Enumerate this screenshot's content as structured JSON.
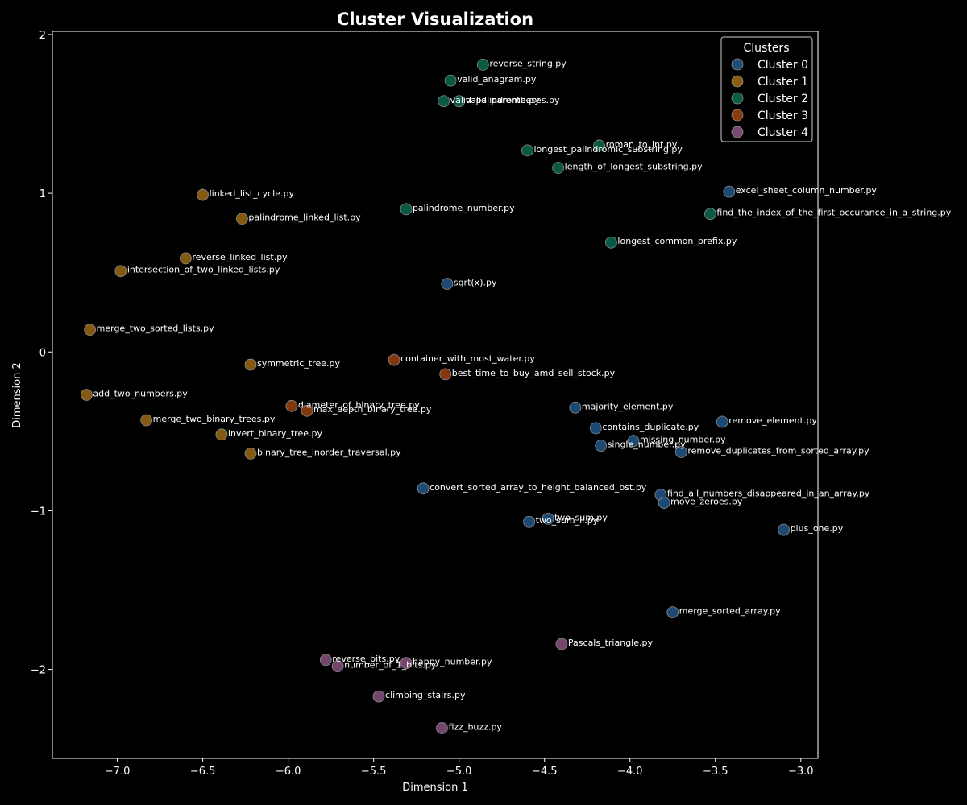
{
  "chart_data": {
    "type": "scatter",
    "title": "Cluster Visualization",
    "xlabel": "Dimension 1",
    "ylabel": "Dimension 2",
    "xlim": [
      -7.38,
      -2.9
    ],
    "ylim": [
      -2.56,
      2.02
    ],
    "x_ticks": [
      -7.0,
      -6.5,
      -6.0,
      -5.5,
      -5.0,
      -4.5,
      -4.0,
      -3.5,
      -3.0
    ],
    "y_ticks": [
      -2,
      -1,
      0,
      1,
      2
    ],
    "x_tick_labels": [
      "−7.0",
      "−6.5",
      "−6.0",
      "−5.5",
      "−5.0",
      "−4.5",
      "−4.0",
      "−3.5",
      "−3.0"
    ],
    "y_tick_labels": [
      "−2",
      "−1",
      "0",
      "1",
      "2"
    ],
    "grid": false,
    "legend": {
      "title": "Clusters",
      "placement": "top-right"
    },
    "series": [
      {
        "name": "Cluster 0",
        "color": "#1f4e79",
        "points": [
          {
            "label": "sqrt(x).py",
            "x": -5.07,
            "y": 0.43
          },
          {
            "label": "excel_sheet_column_number.py",
            "x": -3.42,
            "y": 1.01
          },
          {
            "label": "majority_element.py",
            "x": -4.32,
            "y": -0.35
          },
          {
            "label": "contains_duplicate.py",
            "x": -4.2,
            "y": -0.48
          },
          {
            "label": "remove_element.py",
            "x": -3.46,
            "y": -0.44
          },
          {
            "label": "missing_number.py",
            "x": -3.98,
            "y": -0.56
          },
          {
            "label": "single_number.py",
            "x": -4.17,
            "y": -0.59
          },
          {
            "label": "remove_duplicates_from_sorted_array.py",
            "x": -3.7,
            "y": -0.63
          },
          {
            "label": "convert_sorted_array_to_height_balanced_bst.py",
            "x": -5.21,
            "y": -0.86
          },
          {
            "label": "find_all_numbers_disappeared_in_an_array.py",
            "x": -3.82,
            "y": -0.9
          },
          {
            "label": "move_zeroes.py",
            "x": -3.8,
            "y": -0.95
          },
          {
            "label": "two_sum.py",
            "x": -4.48,
            "y": -1.05
          },
          {
            "label": "two_sum_ii.py",
            "x": -4.59,
            "y": -1.07
          },
          {
            "label": "plus_one.py",
            "x": -3.1,
            "y": -1.12
          },
          {
            "label": "merge_sorted_array.py",
            "x": -3.75,
            "y": -1.64
          }
        ]
      },
      {
        "name": "Cluster 1",
        "color": "#8b5e12",
        "points": [
          {
            "label": "linked_list_cycle.py",
            "x": -6.5,
            "y": 0.99
          },
          {
            "label": "palindrome_linked_list.py",
            "x": -6.27,
            "y": 0.84
          },
          {
            "label": "reverse_linked_list.py",
            "x": -6.6,
            "y": 0.59
          },
          {
            "label": "intersection_of_two_linked_lists.py",
            "x": -6.98,
            "y": 0.51
          },
          {
            "label": "merge_two_sorted_lists.py",
            "x": -7.16,
            "y": 0.14
          },
          {
            "label": "symmetric_tree.py",
            "x": -6.22,
            "y": -0.08
          },
          {
            "label": "add_two_numbers.py",
            "x": -7.18,
            "y": -0.27
          },
          {
            "label": "merge_two_binary_trees.py",
            "x": -6.83,
            "y": -0.43
          },
          {
            "label": "invert_binary_tree.py",
            "x": -6.39,
            "y": -0.52
          },
          {
            "label": "binary_tree_inorder_traversal.py",
            "x": -6.22,
            "y": -0.64
          }
        ]
      },
      {
        "name": "Cluster 2",
        "color": "#0b5e48",
        "points": [
          {
            "label": "reverse_string.py",
            "x": -4.86,
            "y": 1.81
          },
          {
            "label": "valid_anagram.py",
            "x": -5.05,
            "y": 1.71
          },
          {
            "label": "valid_palindrome.py",
            "x": -5.09,
            "y": 1.58
          },
          {
            "label": "valid_parentheses.py",
            "x": -5.0,
            "y": 1.58
          },
          {
            "label": "roman_to_int.py",
            "x": -4.18,
            "y": 1.3
          },
          {
            "label": "longest_palindromic_substring.py",
            "x": -4.6,
            "y": 1.27
          },
          {
            "label": "length_of_longest_substring.py",
            "x": -4.42,
            "y": 1.16
          },
          {
            "label": "palindrome_number.py",
            "x": -5.31,
            "y": 0.9
          },
          {
            "label": "find_the_index_of_the_first_occurance_in_a_string.py",
            "x": -3.53,
            "y": 0.87
          },
          {
            "label": "longest_common_prefix.py",
            "x": -4.11,
            "y": 0.69
          }
        ]
      },
      {
        "name": "Cluster 3",
        "color": "#8a3a10",
        "points": [
          {
            "label": "container_with_most_water.py",
            "x": -5.38,
            "y": -0.05
          },
          {
            "label": "best_time_to_buy_amd_sell_stock.py",
            "x": -5.08,
            "y": -0.14
          },
          {
            "label": "diameter_of_binary_tree.py",
            "x": -5.98,
            "y": -0.34
          },
          {
            "label": "max_depth_binary_tree.py",
            "x": -5.89,
            "y": -0.37
          }
        ]
      },
      {
        "name": "Cluster 4",
        "color": "#7a4a72",
        "points": [
          {
            "label": "Pascals_triangle.py",
            "x": -4.4,
            "y": -1.84
          },
          {
            "label": "reverse_bits.py",
            "x": -5.78,
            "y": -1.94
          },
          {
            "label": "number_of_1_bits.py",
            "x": -5.71,
            "y": -1.98
          },
          {
            "label": "happy_number.py",
            "x": -5.31,
            "y": -1.96
          },
          {
            "label": "climbing_stairs.py",
            "x": -5.47,
            "y": -2.17
          },
          {
            "label": "fizz_buzz.py",
            "x": -5.1,
            "y": -2.37
          }
        ]
      }
    ]
  }
}
